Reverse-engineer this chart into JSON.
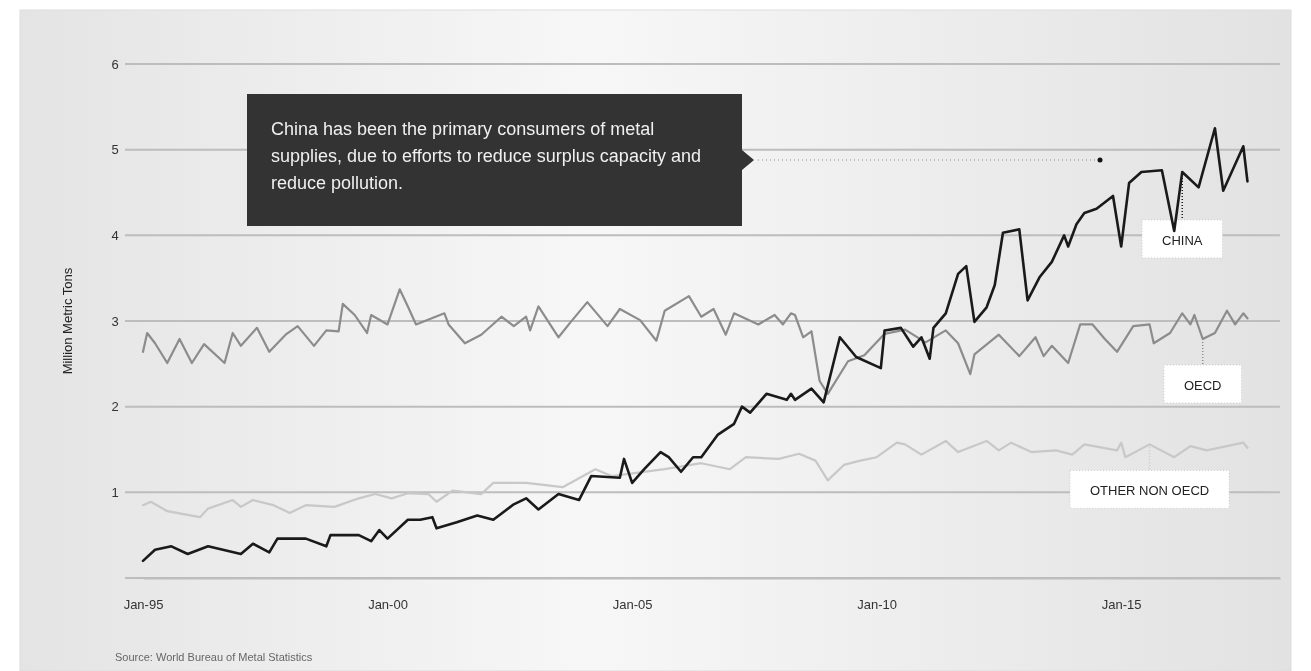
{
  "chart_data": {
    "type": "line",
    "ylabel": "Million Metric Tons",
    "xlim": [
      "1995-01",
      "2018-04"
    ],
    "xticks": [
      {
        "value": "1995-01",
        "label": "Jan-95"
      },
      {
        "value": "2000-01",
        "label": "Jan-00"
      },
      {
        "value": "2005-01",
        "label": "Jan-05"
      },
      {
        "value": "2010-01",
        "label": "Jan-10"
      },
      {
        "value": "2015-01",
        "label": "Jan-15"
      }
    ],
    "ylim": [
      0,
      6
    ],
    "yticks": [
      {
        "value": 0,
        "label": null
      },
      1,
      2,
      3,
      4,
      5,
      6
    ],
    "grid": "y",
    "line_style": "solid",
    "marker": "none",
    "legend": "right",
    "annotations": [
      "China has been the primary consumers of metal supplies, due to efforts to reduce surplus capacity and reduce pollution.",
      "Source: World Bureau of Metal Statistics"
    ],
    "series": [
      {
        "name": "OECD",
        "color": "#8c8c8c",
        "x": [
          "1995-01",
          "1995-02",
          "1995-04",
          "1995-07",
          "1995-10",
          "1996-01",
          "1996-04",
          "1996-09",
          "1996-11",
          "1997-01",
          "1997-05",
          "1997-08",
          "1997-12",
          "1998-03",
          "1998-07",
          "1998-10",
          "1999-01",
          "1999-02",
          "1999-05",
          "1999-08",
          "1999-09",
          "2000-01",
          "2000-04",
          "2000-06",
          "2000-08",
          "2001-03",
          "2001-04",
          "2001-08",
          "2001-12",
          "2002-05",
          "2002-08",
          "2002-11",
          "2002-12",
          "2003-02",
          "2003-07",
          "2003-10",
          "2004-02",
          "2004-07",
          "2004-10",
          "2005-03",
          "2005-07",
          "2005-09",
          "2006-03",
          "2006-06",
          "2006-09",
          "2006-12",
          "2007-02",
          "2007-08",
          "2007-12",
          "2008-02",
          "2008-04",
          "2008-05",
          "2008-07",
          "2008-09",
          "2008-11",
          "2009-01",
          "2009-06",
          "2009-10",
          "2010-03",
          "2010-08",
          "2011-01",
          "2011-06",
          "2011-09",
          "2011-12",
          "2012-01",
          "2012-07",
          "2012-12",
          "2013-04",
          "2013-06",
          "2013-08",
          "2013-12",
          "2014-03",
          "2014-06",
          "2014-09",
          "2014-12",
          "2015-04",
          "2015-08",
          "2015-09",
          "2016-01",
          "2016-04",
          "2016-06",
          "2016-07",
          "2016-09",
          "2016-12",
          "2017-03",
          "2017-05",
          "2017-07",
          "2017-08"
        ],
        "values": [
          2.64,
          2.86,
          2.74,
          2.51,
          2.79,
          2.51,
          2.73,
          2.51,
          2.86,
          2.71,
          2.92,
          2.64,
          2.84,
          2.94,
          2.71,
          2.89,
          2.88,
          3.2,
          3.07,
          2.86,
          3.07,
          2.96,
          3.37,
          3.17,
          2.96,
          3.09,
          2.96,
          2.74,
          2.84,
          3.05,
          2.94,
          3.05,
          2.89,
          3.17,
          2.81,
          2.99,
          3.22,
          2.94,
          3.14,
          3.01,
          2.77,
          3.12,
          3.29,
          3.05,
          3.14,
          2.84,
          3.09,
          2.96,
          3.07,
          2.96,
          3.09,
          3.07,
          2.81,
          2.88,
          2.3,
          2.15,
          2.53,
          2.6,
          2.85,
          2.9,
          2.75,
          2.89,
          2.74,
          2.38,
          2.61,
          2.84,
          2.59,
          2.81,
          2.59,
          2.71,
          2.51,
          2.96,
          2.96,
          2.79,
          2.64,
          2.94,
          2.96,
          2.74,
          2.86,
          3.09,
          2.96,
          3.07,
          2.79,
          2.86,
          3.12,
          2.96,
          3.09,
          3.03
        ]
      },
      {
        "name": "OTHER NON OECD",
        "color": "#c8c8c8",
        "x": [
          "1995-01",
          "1995-03",
          "1995-07",
          "1996-03",
          "1996-05",
          "1996-11",
          "1997-01",
          "1997-04",
          "1997-09",
          "1998-01",
          "1998-05",
          "1998-12",
          "1999-06",
          "1999-10",
          "2000-02",
          "2000-06",
          "2000-11",
          "2001-01",
          "2001-05",
          "2001-12",
          "2002-03",
          "2002-11",
          "2003-08",
          "2004-04",
          "2004-08",
          "2005-09",
          "2006-06",
          "2007-01",
          "2007-05",
          "2008-01",
          "2008-06",
          "2008-10",
          "2009-01",
          "2009-05",
          "2009-09",
          "2010-01",
          "2010-06",
          "2010-08",
          "2010-12",
          "2011-06",
          "2011-09",
          "2012-04",
          "2012-07",
          "2012-10",
          "2013-03",
          "2013-09",
          "2014-01",
          "2014-04",
          "2014-12",
          "2015-01",
          "2015-02",
          "2015-08",
          "2016-02",
          "2016-06",
          "2016-10",
          "2017-07",
          "2017-08"
        ],
        "values": [
          0.85,
          0.89,
          0.78,
          0.71,
          0.81,
          0.91,
          0.83,
          0.91,
          0.85,
          0.76,
          0.85,
          0.83,
          0.93,
          0.98,
          0.93,
          0.99,
          0.98,
          0.89,
          1.02,
          0.98,
          1.11,
          1.11,
          1.06,
          1.27,
          1.19,
          1.27,
          1.34,
          1.27,
          1.41,
          1.39,
          1.45,
          1.37,
          1.14,
          1.32,
          1.37,
          1.41,
          1.58,
          1.56,
          1.44,
          1.6,
          1.47,
          1.6,
          1.49,
          1.58,
          1.47,
          1.49,
          1.44,
          1.56,
          1.49,
          1.58,
          1.41,
          1.56,
          1.41,
          1.54,
          1.49,
          1.58,
          1.52
        ]
      },
      {
        "name": "CHINA",
        "color": "#1a1a1a",
        "x": [
          "1995-01",
          "1995-04",
          "1995-08",
          "1995-12",
          "1996-05",
          "1997-01",
          "1997-04",
          "1997-08",
          "1997-10",
          "1998-05",
          "1998-10",
          "1998-11",
          "1999-06",
          "1999-09",
          "1999-11",
          "2000-01",
          "2000-06",
          "2000-09",
          "2000-12",
          "2001-01",
          "2001-06",
          "2001-11",
          "2002-03",
          "2002-08",
          "2002-11",
          "2003-02",
          "2003-07",
          "2003-12",
          "2004-03",
          "2004-10",
          "2004-11",
          "2005-01",
          "2005-04",
          "2005-08",
          "2005-10",
          "2006-01",
          "2006-04",
          "2006-06",
          "2006-10",
          "2007-02",
          "2007-04",
          "2007-06",
          "2007-10",
          "2008-03",
          "2008-04",
          "2008-05",
          "2008-09",
          "2008-12",
          "2009-04",
          "2009-08",
          "2010-02",
          "2010-03",
          "2010-07",
          "2010-10",
          "2010-12",
          "2011-02",
          "2011-03",
          "2011-06",
          "2011-09",
          "2011-11",
          "2012-01",
          "2012-04",
          "2012-06",
          "2012-08",
          "2012-12",
          "2013-02",
          "2013-05",
          "2013-08",
          "2013-11",
          "2013-12",
          "2014-02",
          "2014-04",
          "2014-07",
          "2014-11",
          "2015-01",
          "2015-03",
          "2015-06",
          "2015-11",
          "2016-02",
          "2016-04",
          "2016-08",
          "2016-12",
          "2017-02",
          "2017-07",
          "2017-08"
        ],
        "values": [
          0.2,
          0.33,
          0.37,
          0.28,
          0.37,
          0.28,
          0.4,
          0.3,
          0.46,
          0.46,
          0.37,
          0.5,
          0.5,
          0.43,
          0.56,
          0.46,
          0.68,
          0.68,
          0.71,
          0.58,
          0.65,
          0.73,
          0.68,
          0.86,
          0.93,
          0.8,
          0.98,
          0.91,
          1.19,
          1.17,
          1.39,
          1.11,
          1.27,
          1.47,
          1.41,
          1.24,
          1.41,
          1.41,
          1.67,
          1.8,
          2.0,
          1.93,
          2.15,
          2.08,
          2.15,
          2.08,
          2.21,
          2.05,
          2.81,
          2.58,
          2.45,
          2.89,
          2.92,
          2.7,
          2.81,
          2.56,
          2.92,
          3.09,
          3.55,
          3.64,
          2.99,
          3.16,
          3.42,
          4.03,
          4.07,
          3.24,
          3.51,
          3.69,
          4.0,
          3.87,
          4.13,
          4.26,
          4.31,
          4.46,
          3.87,
          4.61,
          4.74,
          4.76,
          4.05,
          4.74,
          4.56,
          5.25,
          4.52,
          5.04,
          4.63
        ]
      }
    ]
  }
}
